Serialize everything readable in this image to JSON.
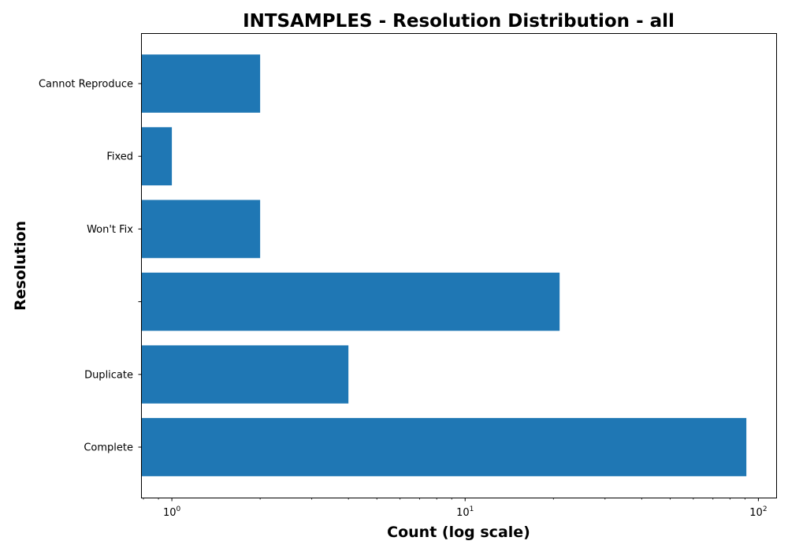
{
  "chart_data": {
    "type": "bar",
    "orientation": "horizontal",
    "title": "INTSAMPLES - Resolution Distribution - all",
    "xlabel": "Count (log scale)",
    "ylabel": "Resolution",
    "x_scale": "log",
    "xlim": [
      0.79,
      115
    ],
    "x_ticks": [
      {
        "value": 1,
        "base": "10",
        "exp": "0"
      },
      {
        "value": 10,
        "base": "10",
        "exp": "1"
      },
      {
        "value": 100,
        "base": "10",
        "exp": "2"
      }
    ],
    "categories": [
      "Cannot Reproduce",
      "Fixed",
      "Won't Fix",
      "",
      "Duplicate",
      "Complete"
    ],
    "values": [
      2,
      1,
      2,
      21,
      4,
      91
    ],
    "bar_color": "#1f77b4",
    "grid": false,
    "legend": false
  }
}
